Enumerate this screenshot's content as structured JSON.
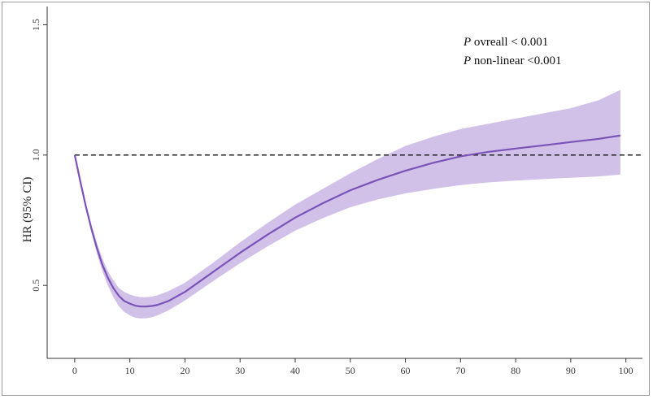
{
  "chart_data": {
    "type": "line",
    "title": "",
    "xlabel": "",
    "ylabel": "HR (95% CI)",
    "xlim": [
      -5,
      103
    ],
    "ylim": [
      0.22,
      1.57
    ],
    "x_ticks": [
      0,
      10,
      20,
      30,
      40,
      50,
      60,
      70,
      80,
      90,
      100
    ],
    "x_tick_labels": [
      "0",
      "10",
      "20",
      "30",
      "40",
      "50",
      "60",
      "70",
      "80",
      "90",
      "100"
    ],
    "y_ticks": [
      0.5,
      1.0,
      1.5
    ],
    "y_tick_labels": [
      "0.5",
      "1.0",
      "1.5"
    ],
    "reference_line": {
      "y": 1.0,
      "style": "dashed"
    },
    "grid": false,
    "line_color": "#7b52b8",
    "band_color": "#c9b6e4",
    "annotations": [
      {
        "italic": "P",
        "text": " ovreall < 0.001"
      },
      {
        "italic": "P",
        "text": " non-linear <0.001"
      }
    ],
    "series": [
      {
        "x": [
          0,
          1,
          2,
          3,
          4,
          5,
          6,
          7,
          8,
          9,
          10,
          11,
          12,
          13,
          14,
          15,
          17,
          20,
          25,
          30,
          35,
          40,
          45,
          50,
          55,
          60,
          65,
          70,
          75,
          80,
          85,
          90,
          95,
          99
        ],
        "y": [
          1.0,
          0.9,
          0.805,
          0.72,
          0.645,
          0.58,
          0.53,
          0.49,
          0.46,
          0.44,
          0.43,
          0.422,
          0.419,
          0.419,
          0.421,
          0.425,
          0.44,
          0.475,
          0.55,
          0.625,
          0.695,
          0.76,
          0.815,
          0.865,
          0.905,
          0.94,
          0.97,
          0.995,
          1.012,
          1.025,
          1.037,
          1.05,
          1.062,
          1.075
        ],
        "lower": [
          1.0,
          0.895,
          0.795,
          0.705,
          0.625,
          0.555,
          0.5,
          0.455,
          0.42,
          0.398,
          0.385,
          0.376,
          0.373,
          0.374,
          0.378,
          0.385,
          0.404,
          0.442,
          0.515,
          0.585,
          0.65,
          0.71,
          0.758,
          0.8,
          0.83,
          0.853,
          0.87,
          0.885,
          0.895,
          0.902,
          0.908,
          0.913,
          0.918,
          0.925
        ],
        "upper": [
          1.0,
          0.905,
          0.815,
          0.735,
          0.665,
          0.605,
          0.555,
          0.52,
          0.49,
          0.475,
          0.465,
          0.458,
          0.455,
          0.455,
          0.457,
          0.462,
          0.478,
          0.51,
          0.585,
          0.665,
          0.74,
          0.81,
          0.87,
          0.93,
          0.985,
          1.035,
          1.07,
          1.1,
          1.12,
          1.14,
          1.16,
          1.18,
          1.21,
          1.25
        ]
      }
    ]
  }
}
